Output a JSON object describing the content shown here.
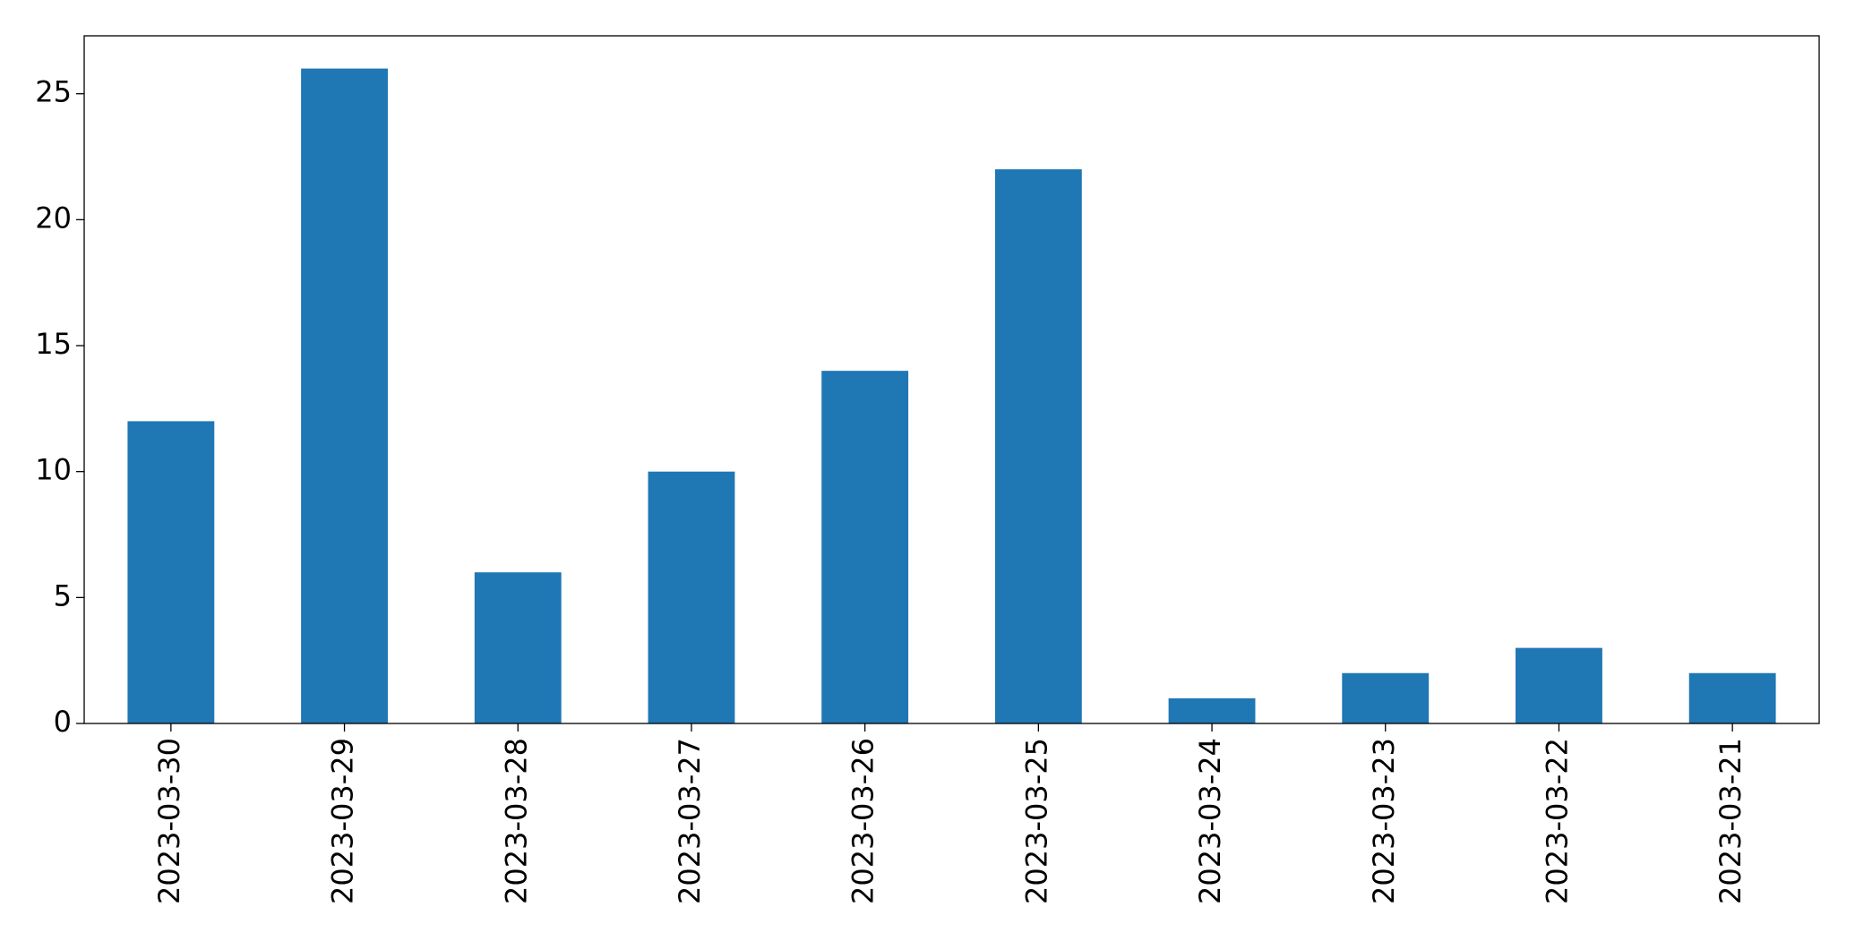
{
  "chart_data": {
    "type": "bar",
    "categories": [
      "2023-03-30",
      "2023-03-29",
      "2023-03-28",
      "2023-03-27",
      "2023-03-26",
      "2023-03-25",
      "2023-03-24",
      "2023-03-23",
      "2023-03-22",
      "2023-03-21"
    ],
    "values": [
      12,
      26,
      6,
      10,
      14,
      22,
      1,
      2,
      3,
      2
    ],
    "color": "#1f77b4",
    "ylim": [
      0,
      27.3
    ],
    "yticks": [
      0,
      5,
      10,
      15,
      20,
      25
    ],
    "grid": false
  }
}
